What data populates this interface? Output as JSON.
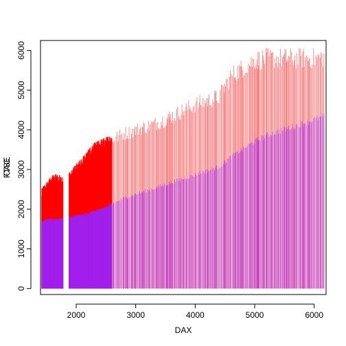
{
  "chart_data": {
    "type": "bar",
    "description_of_marks": "vertical spike lines from y=0 (histogram-like 'h' plot), two overlaid series",
    "xlabel": "DAX",
    "ylabel_overlap": [
      "FTSE",
      "CAC"
    ],
    "xlim": [
      1400,
      6200
    ],
    "ylim": [
      -150,
      6250
    ],
    "x_ticks": [
      2000,
      3000,
      4000,
      5000,
      6000
    ],
    "y_ticks": [
      0,
      1000,
      2000,
      3000,
      4000,
      5000,
      6000
    ],
    "series": [
      {
        "name": "FTSE",
        "color": "#FF0000",
        "curve_x": [
          1400,
          1500,
          1600,
          1700,
          1800,
          1900,
          2000,
          2100,
          2200,
          2300,
          2400,
          2500,
          2600,
          2800,
          3000,
          3200,
          3400,
          3600,
          3800,
          4000,
          4200,
          4400,
          4600,
          4800,
          5000,
          5200,
          5400,
          5600,
          5800,
          6000,
          6200
        ],
        "curve_y": [
          2450,
          2650,
          2800,
          2850,
          2750,
          2900,
          3100,
          3250,
          3450,
          3600,
          3700,
          3750,
          3850,
          4000,
          4100,
          4200,
          4300,
          4450,
          4600,
          4750,
          4850,
          4950,
          5500,
          5700,
          5900,
          5950,
          5950,
          5950,
          5950,
          5950,
          6000
        ],
        "dense_x_ranges": [
          [
            1420,
            1780
          ],
          [
            1880,
            2300
          ],
          [
            2300,
            2600
          ]
        ]
      },
      {
        "name": "CAC",
        "color": "#A020F0",
        "curve_x": [
          1400,
          1500,
          1600,
          1700,
          1800,
          1900,
          2000,
          2100,
          2200,
          2300,
          2400,
          2500,
          2600,
          2800,
          3000,
          3200,
          3400,
          3600,
          3800,
          4000,
          4200,
          4400,
          4600,
          4800,
          5000,
          5200,
          5400,
          5600,
          5800,
          6000,
          6200
        ],
        "curve_y": [
          1650,
          1750,
          1750,
          1750,
          1780,
          1800,
          1850,
          1870,
          1900,
          1950,
          2000,
          2050,
          2150,
          2300,
          2400,
          2500,
          2600,
          2700,
          2800,
          2900,
          3000,
          3100,
          3350,
          3550,
          3750,
          3900,
          4000,
          4100,
          4200,
          4300,
          4400
        ]
      }
    ]
  }
}
